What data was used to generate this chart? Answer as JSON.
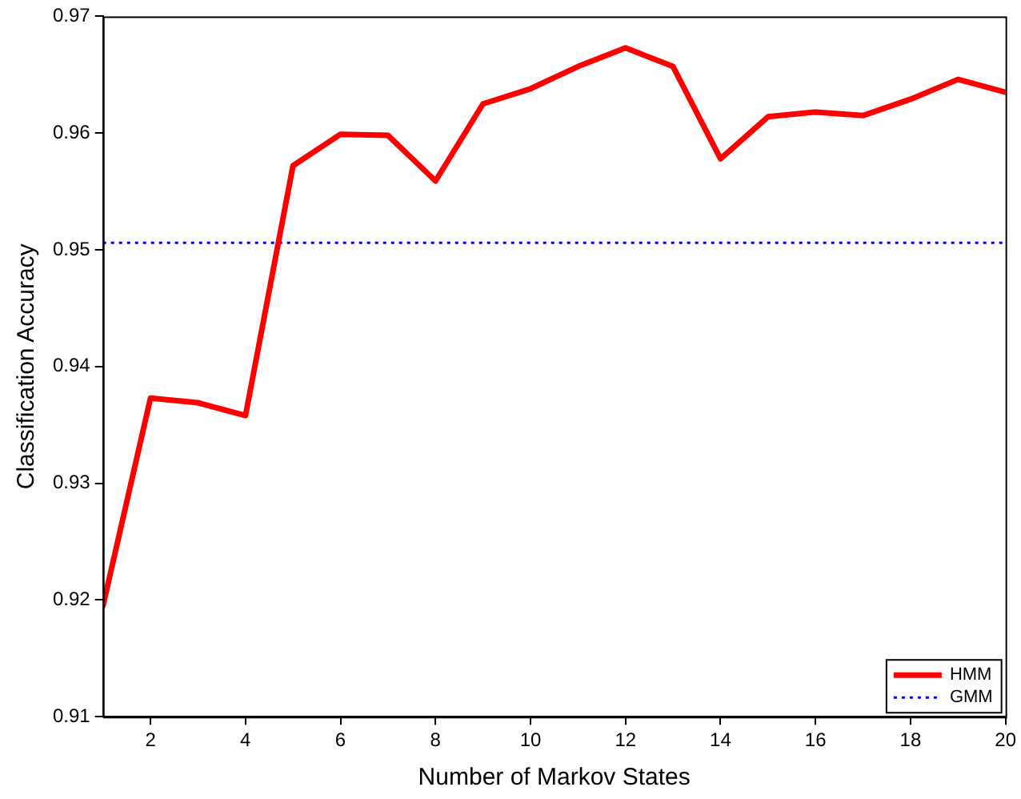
{
  "chart_data": {
    "type": "line",
    "xlabel": "Number of Markov States",
    "ylabel": "Classification Accuracy",
    "xlim": [
      1,
      20
    ],
    "xticks": [
      2,
      4,
      6,
      8,
      10,
      12,
      14,
      16,
      18,
      20
    ],
    "ylim": [
      0.91,
      0.97
    ],
    "yticks": [
      0.91,
      0.92,
      0.93,
      0.94,
      0.95,
      0.96,
      0.97
    ],
    "grid": false,
    "legend": "bottom right",
    "marker": "none",
    "series": [
      {
        "name": "HMM",
        "color": "#ff0000",
        "line_style": "solid",
        "x": [
          1,
          2,
          3,
          4,
          5,
          6,
          7,
          8,
          9,
          10,
          11,
          12,
          13,
          14,
          15,
          16,
          17,
          18,
          19,
          20
        ],
        "values": [
          0.9195,
          0.9373,
          0.9369,
          0.9358,
          0.9572,
          0.9599,
          0.9598,
          0.9559,
          0.9625,
          0.9638,
          0.9657,
          0.9673,
          0.9657,
          0.9578,
          0.9614,
          0.9618,
          0.9615,
          0.9629,
          0.9646,
          0.9635
        ]
      },
      {
        "name": "GMM",
        "color": "#0000ff",
        "line_style": "dotted",
        "x": [
          1,
          20
        ],
        "values": [
          0.9506,
          0.9506
        ]
      }
    ]
  }
}
